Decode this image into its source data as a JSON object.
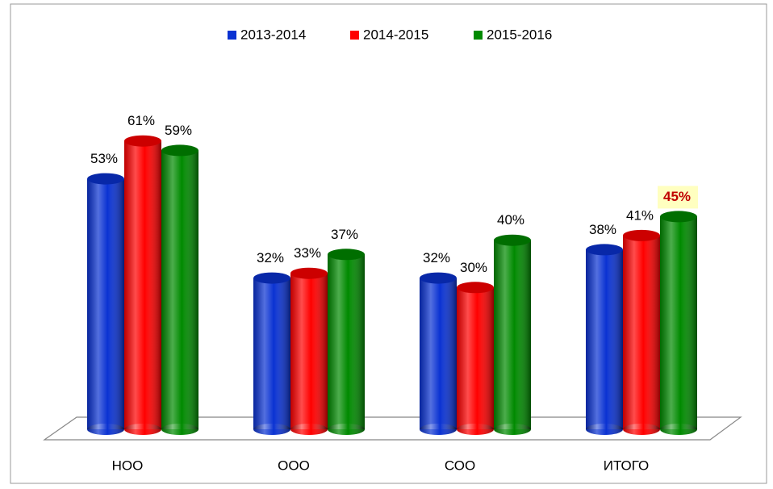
{
  "chart_data": {
    "type": "bar3d",
    "categories": [
      "НОО",
      "ООО",
      "СОО",
      "ИТОГО"
    ],
    "ylim": [
      0,
      70
    ],
    "series": [
      {
        "name": "2013-2014",
        "color": "#0a32d2",
        "values": [
          53,
          32,
          32,
          38
        ],
        "value_labels": [
          "53%",
          "32%",
          "32%",
          "38%"
        ]
      },
      {
        "name": "2014-2015",
        "color": "#ff0000",
        "values": [
          61,
          33,
          30,
          41
        ],
        "value_labels": [
          "61%",
          "33%",
          "30%",
          "41%"
        ]
      },
      {
        "name": "2015-2016",
        "color": "#008a00",
        "values": [
          59,
          37,
          40,
          45
        ],
        "value_labels": [
          "59%",
          "37%",
          "40%",
          "45%"
        ]
      }
    ]
  }
}
